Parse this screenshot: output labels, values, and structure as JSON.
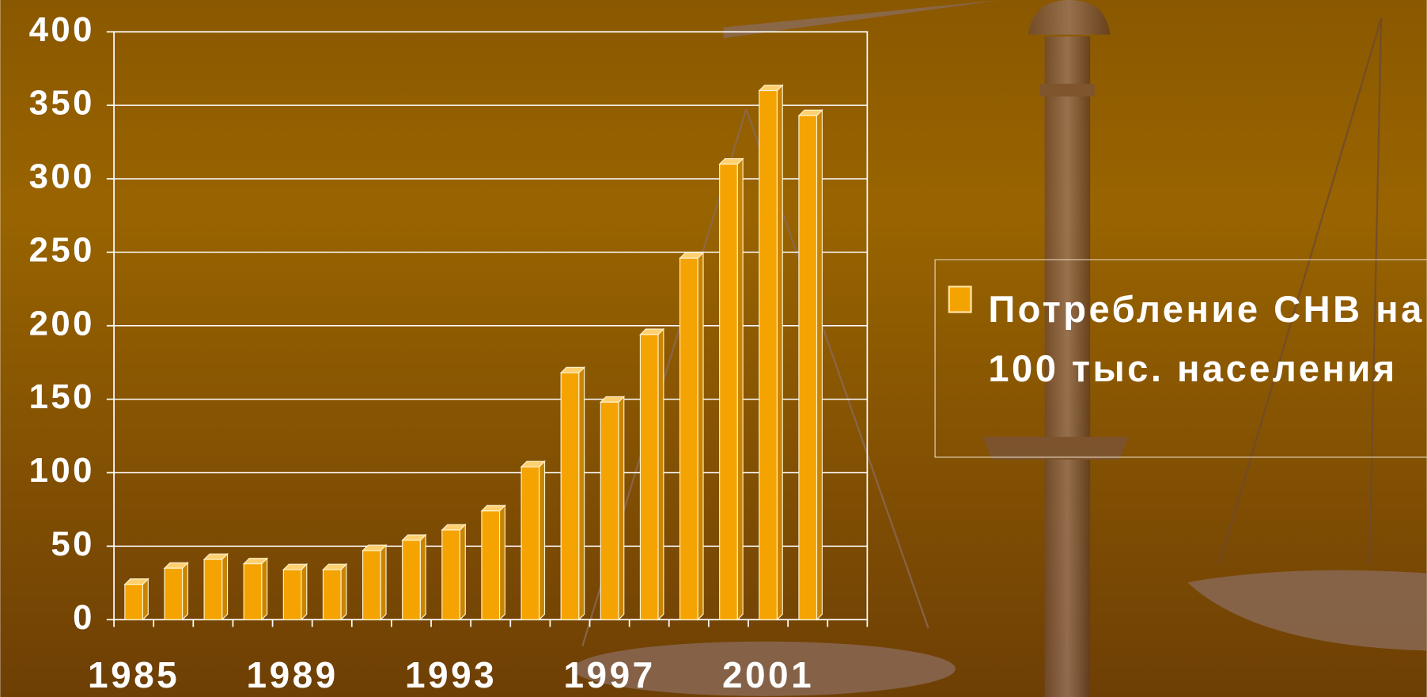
{
  "chart_data": {
    "type": "bar",
    "categories": [
      "1985",
      null,
      null,
      null,
      "1989",
      null,
      null,
      null,
      "1993",
      null,
      null,
      null,
      "1997",
      null,
      null,
      null,
      "2001",
      null,
      null
    ],
    "series": [
      {
        "name": "Потребление СНВ на 100 тыс. населения",
        "color": "#f5a300",
        "values": [
          24,
          35,
          41,
          38,
          34,
          34,
          47,
          54,
          61,
          74,
          104,
          168,
          148,
          194,
          246,
          310,
          360,
          343,
          null
        ]
      }
    ],
    "ylim": [
      0,
      400
    ],
    "yticks": [
      0,
      50,
      100,
      150,
      200,
      250,
      300,
      350,
      400
    ],
    "grid": true,
    "legend": "right"
  }
}
